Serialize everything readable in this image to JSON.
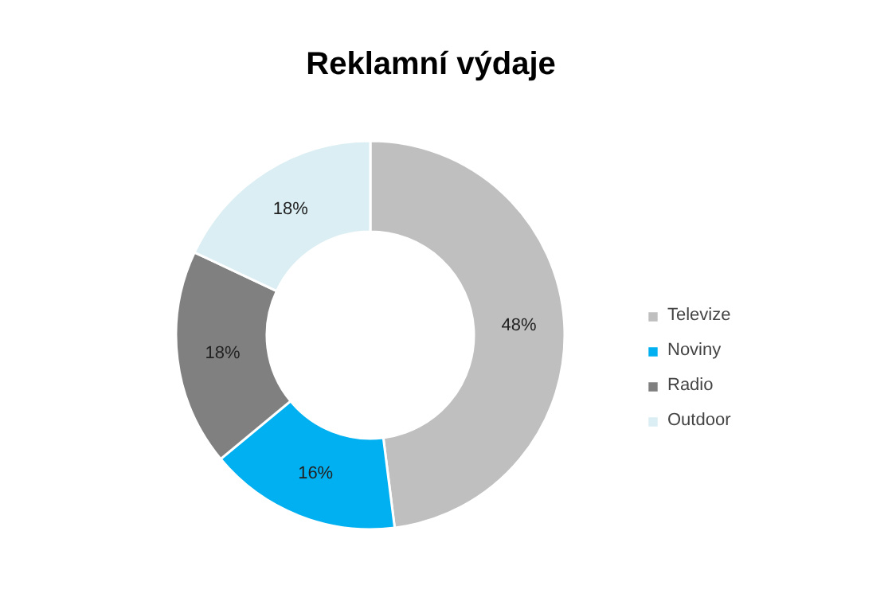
{
  "chart_data": {
    "type": "donut",
    "title": "Reklamní výdaje",
    "categories": [
      "Televize",
      "Noviny",
      "Radio",
      "Outdoor"
    ],
    "values": [
      48,
      16,
      18,
      18
    ],
    "colors": [
      "#bfbfbf",
      "#00b0f0",
      "#808080",
      "#daeef3"
    ],
    "value_labels": [
      "48%",
      "16%",
      "18%",
      "18%"
    ],
    "legend": "right"
  }
}
